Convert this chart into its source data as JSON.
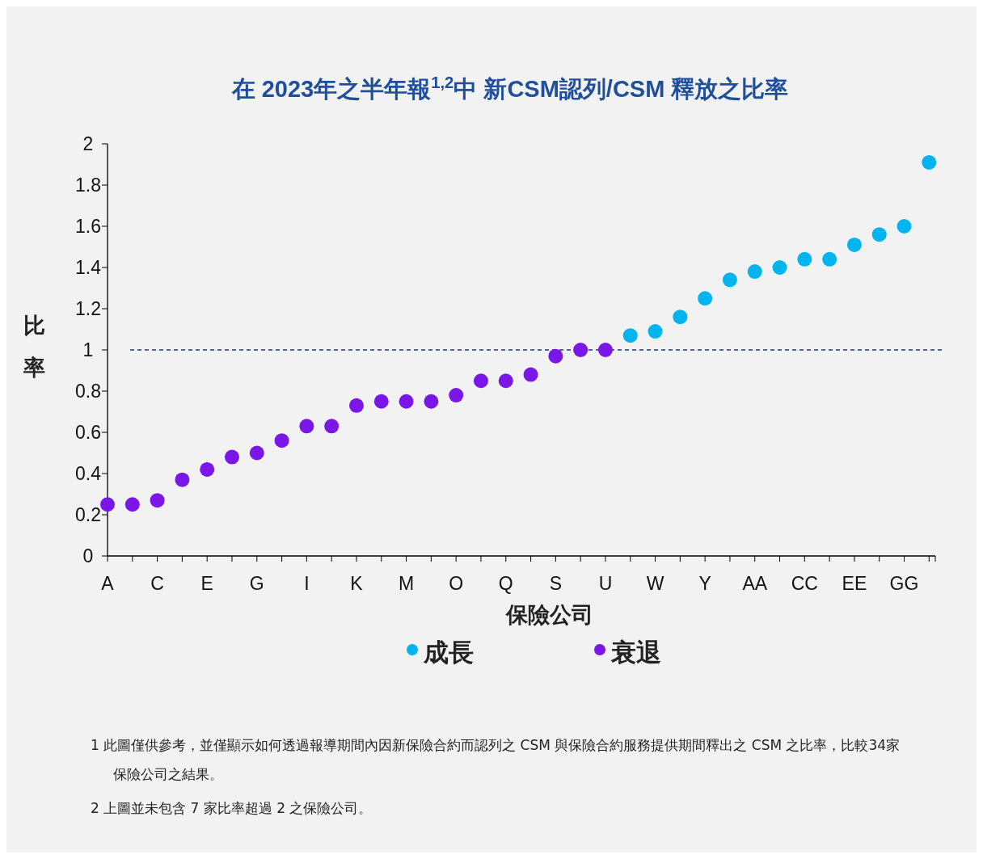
{
  "chart_data": {
    "type": "scatter",
    "title": "在 2023年之半年報$^{1,2}$中 新CSM認列/CSM 釋放之比率",
    "xlabel": "保險公司",
    "ylabel": "比率",
    "categories": [
      "A",
      null,
      "C",
      null,
      "E",
      null,
      "G",
      null,
      "I",
      null,
      "K",
      null,
      "M",
      null,
      "O",
      null,
      "Q",
      null,
      "S",
      null,
      "U",
      null,
      "W",
      null,
      "Y",
      null,
      "AA",
      null,
      "CC",
      null,
      "EE",
      null,
      "GG",
      null
    ],
    "series": [
      {
        "name": "成長",
        "color": "#00b4f0",
        "values": [
          null,
          null,
          null,
          null,
          null,
          null,
          null,
          null,
          null,
          null,
          null,
          null,
          null,
          null,
          null,
          null,
          null,
          null,
          null,
          null,
          null,
          1.07,
          1.09,
          1.16,
          1.25,
          1.34,
          1.38,
          1.4,
          1.44,
          1.44,
          1.51,
          1.56,
          1.6,
          1.91
        ]
      },
      {
        "name": "衰退",
        "color": "#7a16e8",
        "values": [
          0.25,
          0.25,
          0.27,
          0.37,
          0.42,
          0.48,
          0.5,
          0.56,
          0.63,
          0.63,
          0.73,
          0.75,
          0.75,
          0.75,
          0.78,
          0.85,
          0.85,
          0.88,
          0.97,
          1.0,
          1.0,
          null,
          null,
          null,
          null,
          null,
          null,
          null,
          null,
          null,
          null,
          null,
          null,
          null
        ]
      }
    ],
    "ylim": [
      0,
      2
    ],
    "yticks": [
      0,
      0.2,
      0.4,
      0.6,
      0.8,
      1,
      1.2,
      1.4,
      1.6,
      1.8,
      2
    ],
    "marker": "circle",
    "grid": false,
    "legend": "bottom",
    "ref_lines": [
      {
        "axis": "y",
        "value": 1,
        "color": "#1f3864",
        "line_style": "dashed"
      }
    ],
    "annotations": [
      "1 此圖僅供參考，並僅顯示如何透過報導期間內因新保險合約而認列之 CSM 與保險合約服務提供期間釋出之 CSM 之比率，比較34家保險公司之結果。",
      "2 上圖並未包含 7 家比率超過 2 之保險公司。"
    ]
  }
}
